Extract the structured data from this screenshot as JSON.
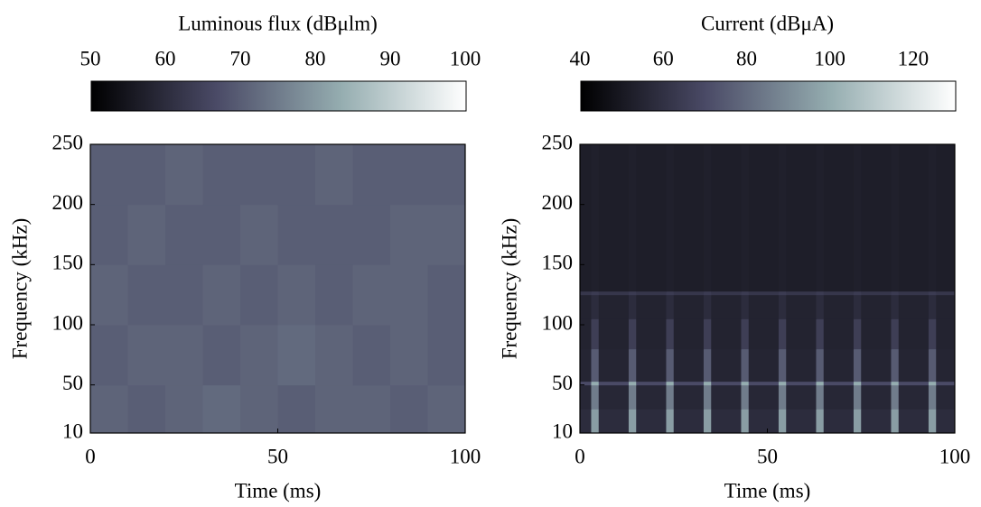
{
  "chart_data": [
    {
      "type": "heatmap",
      "colorbar_label": "Luminous flux (dBμlm)",
      "clim": [
        50,
        100
      ],
      "cticks": [
        50,
        60,
        70,
        80,
        90,
        100
      ],
      "colormap": [
        "#000000",
        "#4a4a66",
        "#95adb0",
        "#ffffff"
      ],
      "xlabel": "Time (ms)",
      "ylabel": "Frequency (kHz)",
      "xlim": [
        0,
        100
      ],
      "xticks": [
        0,
        50,
        100
      ],
      "ylim": [
        10,
        250
      ],
      "yticks": [
        10,
        50,
        100,
        150,
        200,
        250
      ],
      "x_edges": [
        0,
        10,
        20,
        30,
        40,
        50,
        60,
        70,
        80,
        90,
        100
      ],
      "y_edges": [
        10,
        50,
        100,
        150,
        200,
        250
      ],
      "z": [
        [
          71,
          70,
          71,
          72,
          71,
          70,
          71,
          71,
          70,
          71
        ],
        [
          70,
          71,
          71,
          70,
          71,
          72,
          71,
          70,
          71,
          70
        ],
        [
          71,
          70,
          70,
          71,
          70,
          71,
          70,
          71,
          71,
          70
        ],
        [
          70,
          71,
          70,
          70,
          71,
          70,
          70,
          70,
          71,
          71
        ],
        [
          70,
          70,
          71,
          70,
          70,
          70,
          71,
          70,
          70,
          70
        ]
      ]
    },
    {
      "type": "heatmap",
      "colorbar_label": "Current (dBμA)",
      "clim": [
        40,
        130
      ],
      "cticks": [
        40,
        60,
        80,
        100,
        120
      ],
      "colormap": [
        "#000000",
        "#4a4a66",
        "#95adb0",
        "#ffffff"
      ],
      "xlabel": "Time (ms)",
      "ylabel": "Frequency (kHz)",
      "xlim": [
        0,
        100
      ],
      "xticks": [
        0,
        50,
        100
      ],
      "ylim": [
        10,
        250
      ],
      "yticks": [
        10,
        50,
        100,
        150,
        200,
        250
      ],
      "x_edges": [
        0,
        3,
        5,
        13,
        15,
        23,
        25,
        33,
        35,
        43,
        45,
        53,
        55,
        63,
        65,
        73,
        75,
        83,
        85,
        93,
        95,
        100
      ],
      "y_edges": [
        10,
        30,
        50,
        53,
        80,
        105,
        125,
        128,
        250
      ],
      "z": [
        [
          58,
          95,
          58,
          95,
          58,
          95,
          58,
          95,
          58,
          95,
          58,
          95,
          58,
          95,
          58,
          95,
          58,
          95,
          58,
          95,
          58
        ],
        [
          56,
          85,
          56,
          85,
          56,
          85,
          56,
          85,
          56,
          85,
          56,
          85,
          56,
          85,
          56,
          85,
          56,
          85,
          56,
          85,
          56
        ],
        [
          70,
          100,
          70,
          100,
          70,
          100,
          70,
          100,
          70,
          100,
          70,
          100,
          70,
          100,
          70,
          100,
          70,
          100,
          70,
          100,
          70
        ],
        [
          55,
          75,
          55,
          75,
          55,
          75,
          55,
          75,
          55,
          75,
          55,
          75,
          55,
          75,
          55,
          75,
          55,
          75,
          55,
          75,
          55
        ],
        [
          54,
          65,
          54,
          65,
          54,
          65,
          54,
          65,
          54,
          65,
          54,
          65,
          54,
          65,
          54,
          65,
          54,
          65,
          54,
          65,
          54
        ],
        [
          54,
          58,
          54,
          58,
          54,
          58,
          54,
          58,
          54,
          58,
          54,
          58,
          54,
          58,
          54,
          58,
          54,
          58,
          54,
          58,
          54
        ],
        [
          62,
          64,
          62,
          64,
          62,
          64,
          62,
          64,
          62,
          64,
          62,
          64,
          62,
          64,
          62,
          64,
          62,
          64,
          62,
          64,
          62
        ],
        [
          52,
          53,
          52,
          53,
          52,
          53,
          52,
          53,
          52,
          53,
          52,
          53,
          52,
          53,
          52,
          53,
          52,
          53,
          52,
          53,
          52
        ]
      ]
    }
  ]
}
